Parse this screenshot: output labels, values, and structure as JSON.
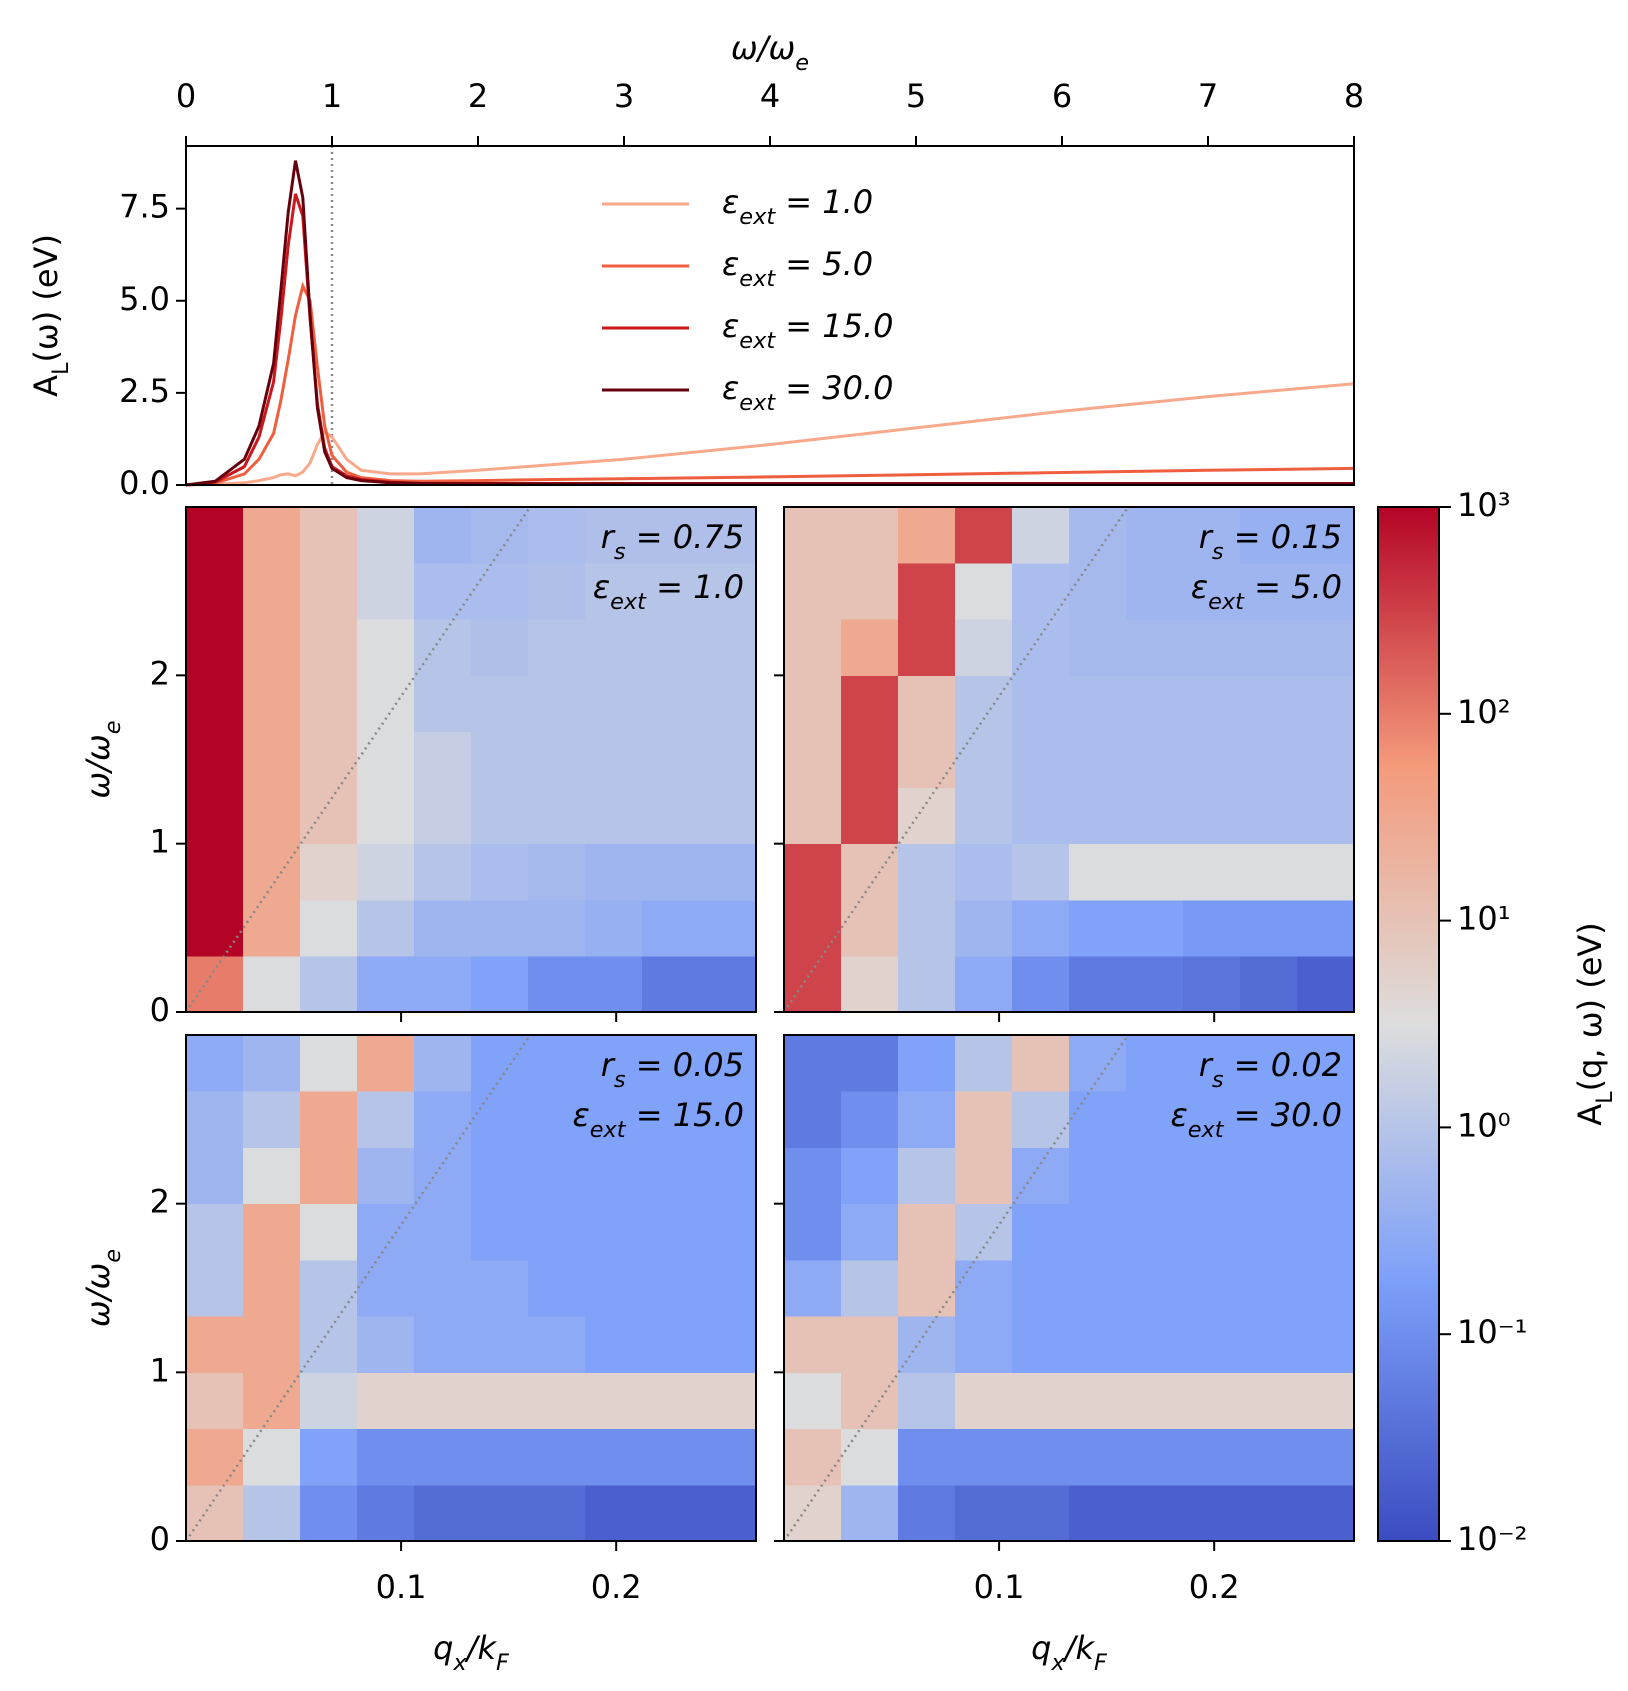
{
  "chart_data": [
    {
      "type": "line",
      "xlabel": "ω/ω_e",
      "ylabel": "A_L(ω) (eV)",
      "xaxis_position": "top",
      "legend": "upper center",
      "x": [
        0,
        0.2,
        0.4,
        0.5,
        0.6,
        0.65,
        0.7,
        0.75,
        0.8,
        0.85,
        0.9,
        0.95,
        1.0,
        1.1,
        1.2,
        1.4,
        1.6,
        2,
        2.5,
        3,
        4,
        5,
        6,
        7,
        8
      ],
      "series": [
        {
          "name": "ε_{ext} = 1.0",
          "color": "#f9a98b",
          "values": [
            0,
            0.02,
            0.06,
            0.12,
            0.2,
            0.28,
            0.3,
            0.25,
            0.35,
            0.6,
            1.1,
            1.45,
            1.3,
            0.7,
            0.4,
            0.3,
            0.3,
            0.4,
            0.55,
            0.7,
            1.1,
            1.55,
            2.0,
            2.4,
            2.75
          ]
        },
        {
          "name": "ε_{ext} = 5.0",
          "color": "#ef5f3f",
          "values": [
            0,
            0.05,
            0.3,
            0.7,
            1.4,
            2.3,
            3.4,
            4.6,
            5.4,
            5.0,
            3.2,
            1.6,
            0.8,
            0.35,
            0.2,
            0.12,
            0.1,
            0.12,
            0.15,
            0.17,
            0.22,
            0.28,
            0.34,
            0.4,
            0.45
          ]
        },
        {
          "name": "ε_{ext} = 15.0",
          "color": "#cb181d",
          "values": [
            0,
            0.08,
            0.5,
            1.3,
            2.8,
            4.5,
            6.5,
            7.9,
            7.3,
            4.5,
            2.2,
            1.0,
            0.5,
            0.25,
            0.15,
            0.08,
            0.05,
            0.04,
            0.04,
            0.04,
            0.04,
            0.04,
            0.04,
            0.04,
            0.04
          ]
        },
        {
          "name": "ε_{ext} = 30.0",
          "color": "#67000d",
          "values": [
            0,
            0.1,
            0.7,
            1.6,
            3.3,
            5.3,
            7.4,
            8.8,
            7.8,
            4.6,
            2.1,
            0.9,
            0.45,
            0.2,
            0.12,
            0.06,
            0.04,
            0.03,
            0.03,
            0.03,
            0.03,
            0.03,
            0.03,
            0.03,
            0.03
          ]
        }
      ],
      "xlim": [
        0,
        8
      ],
      "xticks": [
        0,
        1,
        2,
        3,
        4,
        5,
        6,
        7,
        8
      ],
      "ylim": [
        0,
        9.2
      ],
      "yticks": [
        {
          "value": 0,
          "label": "0.0"
        },
        2.5,
        {
          "value": 5,
          "label": "5.0"
        },
        7.5
      ],
      "vline": 1
    },
    {
      "type": "heatmap",
      "xlabel": "q_x/k_F",
      "ylabel": "ω/ω_e",
      "xlim": [
        0,
        0.265
      ],
      "ylim": [
        0,
        3
      ],
      "xticks": [
        0.1,
        0.2
      ],
      "yticks": [
        0,
        1,
        2
      ],
      "guide": [
        [
          0,
          0
        ],
        [
          0.16,
          3
        ]
      ],
      "colorbar": {
        "label": "A_L(q, ω) (eV)",
        "log": true,
        "lim": [
          0.01,
          1000
        ],
        "ticks": [
          {
            "value": 0.01,
            "label": "10⁻²"
          },
          {
            "value": 0.1,
            "label": "10⁻¹"
          },
          {
            "value": 1,
            "label": "10⁰"
          },
          {
            "value": 10,
            "label": "10¹"
          },
          {
            "value": 100,
            "label": "10²"
          },
          {
            "value": 1000,
            "label": "10³"
          }
        ],
        "colormap": [
          "#3b4cc0",
          "#7c9ff9",
          "#dddddd",
          "#f49a7b",
          "#b40426"
        ]
      },
      "panels": [
        {
          "annotations": [
            "r_s = 0.75",
            "ε_{ext} = 1.0"
          ],
          "z": [
            [
              100,
              3,
              1,
              0.3,
              0.3,
              0.2,
              0.1,
              0.1,
              0.05,
              0.05
            ],
            [
              1000,
              30,
              3,
              1,
              0.5,
              0.5,
              0.5,
              0.4,
              0.3,
              0.3
            ],
            [
              1000,
              30,
              5,
              2,
              1,
              0.7,
              0.6,
              0.5,
              0.5,
              0.5
            ],
            [
              1000,
              30,
              10,
              3,
              1.5,
              1,
              1,
              1,
              1,
              1
            ],
            [
              1000,
              30,
              10,
              3,
              1.5,
              1,
              1,
              1,
              1,
              1
            ],
            [
              1000,
              30,
              10,
              3,
              1,
              1,
              1,
              1,
              1,
              1
            ],
            [
              1000,
              30,
              10,
              3,
              1,
              0.8,
              1,
              1,
              1,
              1
            ],
            [
              1000,
              30,
              10,
              2,
              0.7,
              0.7,
              0.8,
              1,
              1,
              1
            ],
            [
              1000,
              30,
              10,
              2,
              0.5,
              0.6,
              0.7,
              0.8,
              0.8,
              0.8
            ]
          ]
        },
        {
          "annotations": [
            "r_s = 0.15",
            "ε_{ext} = 5.0"
          ],
          "z": [
            [
              300,
              5,
              1,
              0.3,
              0.1,
              0.05,
              0.05,
              0.04,
              0.03,
              0.02
            ],
            [
              300,
              10,
              1,
              0.5,
              0.3,
              0.2,
              0.2,
              0.15,
              0.15,
              0.15
            ],
            [
              300,
              10,
              1,
              0.7,
              1,
              3,
              3,
              3,
              3,
              3
            ],
            [
              10,
              300,
              5,
              1,
              0.7,
              0.7,
              0.7,
              0.7,
              0.7,
              0.7
            ],
            [
              10,
              300,
              10,
              1,
              0.7,
              0.7,
              0.7,
              0.7,
              0.7,
              0.7
            ],
            [
              10,
              300,
              10,
              1,
              0.7,
              0.7,
              0.7,
              0.7,
              0.7,
              0.7
            ],
            [
              10,
              30,
              300,
              2,
              0.7,
              0.6,
              0.6,
              0.6,
              0.6,
              0.6
            ],
            [
              10,
              10,
              300,
              3,
              0.7,
              0.6,
              0.5,
              0.5,
              0.5,
              0.5
            ],
            [
              10,
              10,
              30,
              300,
              2,
              0.6,
              0.5,
              0.5,
              0.4,
              0.4
            ]
          ]
        },
        {
          "annotations": [
            "r_s = 0.05",
            "ε_{ext} = 15.0"
          ],
          "z": [
            [
              10,
              1,
              0.1,
              0.05,
              0.03,
              0.03,
              0.03,
              0.02,
              0.02,
              0.02
            ],
            [
              30,
              3,
              0.2,
              0.1,
              0.1,
              0.1,
              0.1,
              0.1,
              0.1,
              0.1
            ],
            [
              10,
              30,
              2,
              5,
              5,
              5,
              5,
              5,
              5,
              5
            ],
            [
              30,
              30,
              1,
              0.5,
              0.3,
              0.3,
              0.3,
              0.2,
              0.2,
              0.2
            ],
            [
              1,
              30,
              1,
              0.3,
              0.3,
              0.3,
              0.2,
              0.2,
              0.2,
              0.2
            ],
            [
              1,
              30,
              3,
              0.3,
              0.3,
              0.2,
              0.2,
              0.2,
              0.2,
              0.2
            ],
            [
              0.5,
              3,
              30,
              0.5,
              0.3,
              0.2,
              0.2,
              0.2,
              0.2,
              0.2
            ],
            [
              0.5,
              1,
              30,
              1,
              0.3,
              0.2,
              0.2,
              0.2,
              0.2,
              0.2
            ],
            [
              0.3,
              0.5,
              3,
              30,
              0.5,
              0.2,
              0.2,
              0.2,
              0.2,
              0.2
            ]
          ]
        },
        {
          "annotations": [
            "r_s = 0.02",
            "ε_{ext} = 30.0"
          ],
          "z": [
            [
              5,
              0.5,
              0.05,
              0.03,
              0.03,
              0.02,
              0.02,
              0.02,
              0.02,
              0.02
            ],
            [
              10,
              3,
              0.1,
              0.1,
              0.1,
              0.1,
              0.1,
              0.1,
              0.1,
              0.1
            ],
            [
              3,
              10,
              1,
              5,
              5,
              5,
              5,
              5,
              5,
              5
            ],
            [
              10,
              10,
              0.5,
              0.3,
              0.2,
              0.2,
              0.2,
              0.2,
              0.2,
              0.2
            ],
            [
              0.3,
              1,
              10,
              0.3,
              0.2,
              0.2,
              0.2,
              0.2,
              0.2,
              0.2
            ],
            [
              0.1,
              0.3,
              10,
              1,
              0.2,
              0.2,
              0.2,
              0.2,
              0.2,
              0.2
            ],
            [
              0.1,
              0.2,
              1,
              10,
              0.3,
              0.2,
              0.2,
              0.2,
              0.2,
              0.2
            ],
            [
              0.05,
              0.1,
              0.3,
              10,
              1,
              0.2,
              0.2,
              0.2,
              0.2,
              0.2
            ],
            [
              0.05,
              0.05,
              0.2,
              1,
              10,
              0.3,
              0.2,
              0.2,
              0.2,
              0.2
            ]
          ]
        }
      ]
    }
  ]
}
